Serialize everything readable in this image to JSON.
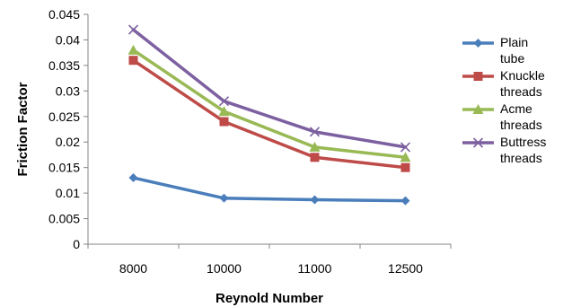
{
  "chart_data": {
    "type": "line",
    "title": "",
    "xlabel": "Reynold Number",
    "ylabel": "Friction Factor",
    "categories": [
      "8000",
      "10000",
      "11000",
      "12500"
    ],
    "ylim": [
      0,
      0.045
    ],
    "yticks": [
      "0",
      "0.005",
      "0.01",
      "0.015",
      "0.02",
      "0.025",
      "0.03",
      "0.035",
      "0.04",
      "0.045"
    ],
    "grid": false,
    "legend_position": "right",
    "series": [
      {
        "name_lines": [
          "Plain",
          "tube"
        ],
        "color": "#4a7ebb",
        "marker": "diamond",
        "values": [
          0.013,
          0.009,
          0.0087,
          0.0085
        ]
      },
      {
        "name_lines": [
          "Knuckle",
          "threads"
        ],
        "color": "#be4b48",
        "marker": "square",
        "values": [
          0.036,
          0.024,
          0.017,
          0.015
        ]
      },
      {
        "name_lines": [
          "Acme",
          "threads"
        ],
        "color": "#98b954",
        "marker": "triangle",
        "values": [
          0.038,
          0.026,
          0.019,
          0.017
        ]
      },
      {
        "name_lines": [
          "Buttress",
          "threads"
        ],
        "color": "#7d60a0",
        "marker": "x",
        "values": [
          0.042,
          0.028,
          0.022,
          0.019
        ]
      }
    ]
  }
}
